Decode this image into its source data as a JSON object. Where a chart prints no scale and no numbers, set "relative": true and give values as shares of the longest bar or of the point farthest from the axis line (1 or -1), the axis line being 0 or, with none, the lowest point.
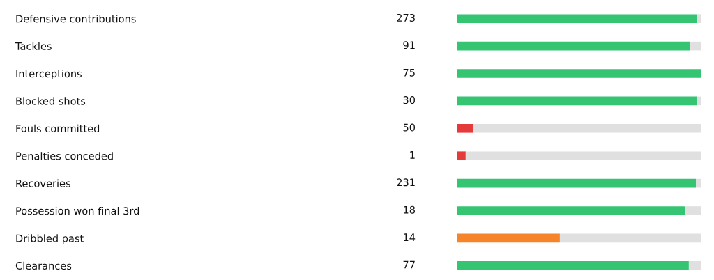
{
  "chart_data": {
    "type": "bar",
    "orientation": "horizontal",
    "stacked": true,
    "relative": true,
    "categories": [
      "Defensive contributions",
      "Tackles",
      "Interceptions",
      "Blocked shots",
      "Fouls committed",
      "Penalties conceded",
      "Recoveries",
      "Possession won final 3rd",
      "Dribbled past",
      "Clearances"
    ],
    "annotations": [
      "273",
      "91",
      "75",
      "30",
      "50",
      "1",
      "231",
      "18",
      "14",
      "77"
    ],
    "series": [
      {
        "colors": [
          "#34c472",
          "#34c472",
          "#34c472",
          "#34c472",
          "#e53a3a",
          "#e53a3a",
          "#34c472",
          "#34c472",
          "#f5842a",
          "#34c472"
        ],
        "values": [
          0.986,
          0.957,
          1.0,
          0.986,
          0.063,
          0.034,
          0.98,
          0.937,
          0.421,
          0.951
        ]
      },
      {
        "color": "#e0e0e0",
        "values": [
          0.014,
          0.043,
          0.0,
          0.014,
          0.937,
          0.966,
          0.02,
          0.063,
          0.579,
          0.049
        ]
      }
    ]
  }
}
